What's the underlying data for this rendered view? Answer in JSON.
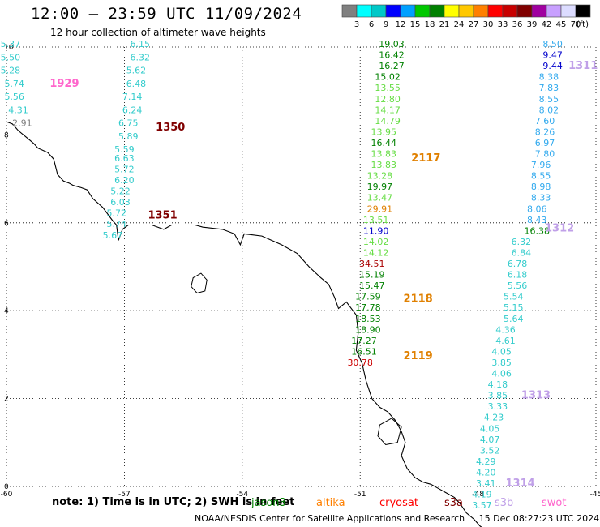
{
  "header": {
    "title": "12:00 – 23:59 UTC 11/09/2024",
    "subtitle": "12 hour collection of altimeter wave heights"
  },
  "colorbar": {
    "unit": "(ft)",
    "labels": [
      "3",
      "6",
      "9",
      "12",
      "15",
      "18",
      "21",
      "24",
      "27",
      "30",
      "33",
      "36",
      "39",
      "42",
      "45",
      "70"
    ],
    "colors": [
      "#808080",
      "#00ffff",
      "#00c8c8",
      "#0000ff",
      "#00a0ff",
      "#00c800",
      "#008000",
      "#ffff00",
      "#ffc800",
      "#ff8000",
      "#ff0000",
      "#c80000",
      "#800000",
      "#a000a0",
      "#c8a0ff",
      "#dcdcff",
      "#000000"
    ]
  },
  "map": {
    "x_ticks": [
      "-60",
      "-57",
      "-54",
      "-51",
      "-48",
      "-45"
    ],
    "y_ticks": [
      "0",
      "2",
      "4",
      "6",
      "8",
      "10"
    ],
    "lon_range": [
      -60,
      -45
    ],
    "lat_range": [
      0,
      10
    ]
  },
  "tracks": [
    {
      "name": "1929",
      "label_color": "#ff66cc",
      "label_pos": [
        -58.9,
        9.1
      ],
      "points": [
        {
          "lon": -59.9,
          "lat": 10.0,
          "v": "5.37",
          "c": "#33cccc"
        },
        {
          "lon": -59.9,
          "lat": 9.7,
          "v": "5.50",
          "c": "#33cccc"
        },
        {
          "lon": -59.9,
          "lat": 9.4,
          "v": "5.28",
          "c": "#33cccc"
        },
        {
          "lon": -59.8,
          "lat": 9.1,
          "v": "5.74",
          "c": "#33cccc"
        },
        {
          "lon": -59.8,
          "lat": 8.8,
          "v": "5.56",
          "c": "#33cccc"
        },
        {
          "lon": -59.7,
          "lat": 8.5,
          "v": "4.31",
          "c": "#33cccc"
        },
        {
          "lon": -59.6,
          "lat": 8.2,
          "v": "2.91",
          "c": "#808080"
        }
      ]
    },
    {
      "name": "1350",
      "label_color": "#800000",
      "label_pos": [
        -56.2,
        8.1
      ],
      "points": [
        {
          "lon": -56.6,
          "lat": 10.0,
          "v": "6.15",
          "c": "#33cccc"
        },
        {
          "lon": -56.6,
          "lat": 9.7,
          "v": "6.32",
          "c": "#33cccc"
        },
        {
          "lon": -56.7,
          "lat": 9.4,
          "v": "5.62",
          "c": "#33cccc"
        },
        {
          "lon": -56.7,
          "lat": 9.1,
          "v": "6.48",
          "c": "#33cccc"
        },
        {
          "lon": -56.8,
          "lat": 8.8,
          "v": "7.14",
          "c": "#33cccc"
        },
        {
          "lon": -56.8,
          "lat": 8.5,
          "v": "6.24",
          "c": "#33cccc"
        },
        {
          "lon": -56.9,
          "lat": 8.2,
          "v": "6.75",
          "c": "#33cccc"
        },
        {
          "lon": -56.9,
          "lat": 7.9,
          "v": "5.89",
          "c": "#33cccc"
        },
        {
          "lon": -57.0,
          "lat": 7.6,
          "v": "5.59",
          "c": "#33cccc"
        },
        {
          "lon": -57.0,
          "lat": 7.4,
          "v": "6.63",
          "c": "#33cccc"
        }
      ]
    },
    {
      "name": "1351",
      "label_color": "#800000",
      "label_pos": [
        -56.4,
        6.1
      ],
      "points": [
        {
          "lon": -57.0,
          "lat": 7.15,
          "v": "5.72",
          "c": "#33cccc"
        },
        {
          "lon": -57.0,
          "lat": 6.9,
          "v": "6.20",
          "c": "#33cccc"
        },
        {
          "lon": -57.1,
          "lat": 6.65,
          "v": "5.22",
          "c": "#33cccc"
        },
        {
          "lon": -57.1,
          "lat": 6.4,
          "v": "6.03",
          "c": "#33cccc"
        },
        {
          "lon": -57.2,
          "lat": 6.15,
          "v": "5.72",
          "c": "#33cccc"
        },
        {
          "lon": -57.2,
          "lat": 5.9,
          "v": "5.74",
          "c": "#33cccc"
        },
        {
          "lon": -57.3,
          "lat": 5.65,
          "v": "5.67",
          "c": "#33cccc"
        }
      ]
    },
    {
      "name": "2117",
      "label_color": "#e08000",
      "label_pos": [
        -49.7,
        7.4
      ],
      "points": [
        {
          "lon": -50.2,
          "lat": 10.0,
          "v": "19.03",
          "c": "#008000"
        },
        {
          "lon": -50.2,
          "lat": 9.75,
          "v": "16.42",
          "c": "#008000"
        },
        {
          "lon": -50.2,
          "lat": 9.5,
          "v": "16.27",
          "c": "#008000"
        },
        {
          "lon": -50.3,
          "lat": 9.25,
          "v": "15.02",
          "c": "#008000"
        },
        {
          "lon": -50.3,
          "lat": 9.0,
          "v": "13.55",
          "c": "#66dd44"
        },
        {
          "lon": -50.3,
          "lat": 8.75,
          "v": "12.80",
          "c": "#66dd44"
        },
        {
          "lon": -50.3,
          "lat": 8.5,
          "v": "14.17",
          "c": "#66dd44"
        },
        {
          "lon": -50.3,
          "lat": 8.25,
          "v": "14.79",
          "c": "#66dd44"
        },
        {
          "lon": -50.4,
          "lat": 8.0,
          "v": "13.95",
          "c": "#66dd44"
        },
        {
          "lon": -50.4,
          "lat": 7.75,
          "v": "16.44",
          "c": "#008000"
        },
        {
          "lon": -50.4,
          "lat": 7.5,
          "v": "13.83",
          "c": "#66dd44"
        },
        {
          "lon": -50.4,
          "lat": 7.25,
          "v": "13.83",
          "c": "#66dd44"
        },
        {
          "lon": -50.5,
          "lat": 7.0,
          "v": "13.28",
          "c": "#66dd44"
        },
        {
          "lon": -50.5,
          "lat": 6.75,
          "v": "19.97",
          "c": "#008000"
        },
        {
          "lon": -50.5,
          "lat": 6.5,
          "v": "13.47",
          "c": "#66dd44"
        },
        {
          "lon": -50.5,
          "lat": 6.25,
          "v": "29.91",
          "c": "#e08000"
        },
        {
          "lon": -50.6,
          "lat": 6.0,
          "v": "13.51",
          "c": "#66dd44"
        },
        {
          "lon": -50.6,
          "lat": 5.75,
          "v": "11.90",
          "c": "#0000cc"
        },
        {
          "lon": -50.6,
          "lat": 5.5,
          "v": "14.02",
          "c": "#66dd44"
        },
        {
          "lon": -50.6,
          "lat": 5.25,
          "v": "14.12",
          "c": "#66dd44"
        }
      ]
    },
    {
      "name": "2118",
      "label_color": "#e08000",
      "label_pos": [
        -49.9,
        4.2
      ],
      "points": [
        {
          "lon": -50.7,
          "lat": 5.0,
          "v": "34.51",
          "c": "#aa0000"
        },
        {
          "lon": -50.7,
          "lat": 4.75,
          "v": "15.19",
          "c": "#008000"
        },
        {
          "lon": -50.7,
          "lat": 4.5,
          "v": "15.47",
          "c": "#008000"
        },
        {
          "lon": -50.8,
          "lat": 4.25,
          "v": "17.59",
          "c": "#008000"
        },
        {
          "lon": -50.8,
          "lat": 4.0,
          "v": "17.78",
          "c": "#008000"
        }
      ]
    },
    {
      "name": "2119",
      "label_color": "#e08000",
      "label_pos": [
        -49.9,
        2.9
      ],
      "points": [
        {
          "lon": -50.8,
          "lat": 3.75,
          "v": "18.53",
          "c": "#008000"
        },
        {
          "lon": -50.8,
          "lat": 3.5,
          "v": "18.90",
          "c": "#008000"
        },
        {
          "lon": -50.9,
          "lat": 3.25,
          "v": "17.27",
          "c": "#008000"
        },
        {
          "lon": -50.9,
          "lat": 3.0,
          "v": "16.51",
          "c": "#008000"
        },
        {
          "lon": -51.0,
          "lat": 2.75,
          "v": "30.78",
          "c": "#cc0000"
        }
      ]
    },
    {
      "name": "1311",
      "label_color": "#c0a0e8",
      "label_pos": [
        -45.7,
        9.5
      ],
      "points": [
        {
          "lon": -46.1,
          "lat": 10.0,
          "v": "8.50",
          "c": "#33aaee"
        },
        {
          "lon": -46.1,
          "lat": 9.75,
          "v": "9.47",
          "c": "#0000cc"
        },
        {
          "lon": -46.1,
          "lat": 9.5,
          "v": "9.44",
          "c": "#0000cc"
        },
        {
          "lon": -46.2,
          "lat": 9.25,
          "v": "8.38",
          "c": "#33aaee"
        },
        {
          "lon": -46.2,
          "lat": 9.0,
          "v": "7.83",
          "c": "#33aaee"
        },
        {
          "lon": -46.2,
          "lat": 8.75,
          "v": "8.55",
          "c": "#33aaee"
        },
        {
          "lon": -46.2,
          "lat": 8.5,
          "v": "8.02",
          "c": "#33aaee"
        },
        {
          "lon": -46.3,
          "lat": 8.25,
          "v": "7.60",
          "c": "#33aaee"
        },
        {
          "lon": -46.3,
          "lat": 8.0,
          "v": "8.26",
          "c": "#33aaee"
        },
        {
          "lon": -46.3,
          "lat": 7.75,
          "v": "6.97",
          "c": "#33aaee"
        },
        {
          "lon": -46.3,
          "lat": 7.5,
          "v": "7.80",
          "c": "#33aaee"
        },
        {
          "lon": -46.4,
          "lat": 7.25,
          "v": "7.96",
          "c": "#33aaee"
        },
        {
          "lon": -46.4,
          "lat": 7.0,
          "v": "8.55",
          "c": "#33aaee"
        },
        {
          "lon": -46.4,
          "lat": 6.75,
          "v": "8.98",
          "c": "#33aaee"
        },
        {
          "lon": -46.4,
          "lat": 6.5,
          "v": "8.33",
          "c": "#33aaee"
        },
        {
          "lon": -46.5,
          "lat": 6.25,
          "v": "8.06",
          "c": "#33aaee"
        },
        {
          "lon": -46.5,
          "lat": 6.0,
          "v": "8.43",
          "c": "#33aaee"
        },
        {
          "lon": -46.5,
          "lat": 5.75,
          "v": "16.38",
          "c": "#008000"
        }
      ]
    },
    {
      "name": "1312",
      "label_color": "#c0a0e8",
      "label_pos": [
        -46.3,
        5.8
      ],
      "points": [
        {
          "lon": -46.9,
          "lat": 5.5,
          "v": "6.32",
          "c": "#33cccc"
        },
        {
          "lon": -46.9,
          "lat": 5.25,
          "v": "6.84",
          "c": "#33cccc"
        },
        {
          "lon": -47.0,
          "lat": 5.0,
          "v": "6.78",
          "c": "#33cccc"
        },
        {
          "lon": -47.0,
          "lat": 4.75,
          "v": "6.18",
          "c": "#33cccc"
        },
        {
          "lon": -47.0,
          "lat": 4.5,
          "v": "5.56",
          "c": "#33cccc"
        },
        {
          "lon": -47.1,
          "lat": 4.25,
          "v": "5.54",
          "c": "#33cccc"
        },
        {
          "lon": -47.1,
          "lat": 4.0,
          "v": "5.15",
          "c": "#33cccc"
        },
        {
          "lon": -47.1,
          "lat": 3.75,
          "v": "5.64",
          "c": "#33cccc"
        }
      ]
    },
    {
      "name": "1313",
      "label_color": "#c0a0e8",
      "label_pos": [
        -46.9,
        2.0
      ],
      "points": [
        {
          "lon": -47.3,
          "lat": 3.5,
          "v": "4.36",
          "c": "#33cccc"
        },
        {
          "lon": -47.3,
          "lat": 3.25,
          "v": "4.61",
          "c": "#33cccc"
        },
        {
          "lon": -47.4,
          "lat": 3.0,
          "v": "4.05",
          "c": "#33cccc"
        },
        {
          "lon": -47.4,
          "lat": 2.75,
          "v": "3.85",
          "c": "#33cccc"
        },
        {
          "lon": -47.4,
          "lat": 2.5,
          "v": "4.06",
          "c": "#33cccc"
        },
        {
          "lon": -47.5,
          "lat": 2.25,
          "v": "4.18",
          "c": "#33cccc"
        },
        {
          "lon": -47.5,
          "lat": 2.0,
          "v": "3.85",
          "c": "#33cccc"
        },
        {
          "lon": -47.5,
          "lat": 1.75,
          "v": "3.33",
          "c": "#33cccc"
        },
        {
          "lon": -47.6,
          "lat": 1.5,
          "v": "4.23",
          "c": "#33cccc"
        }
      ]
    },
    {
      "name": "1314",
      "label_color": "#c0a0e8",
      "label_pos": [
        -47.3,
        0.0
      ],
      "points": [
        {
          "lon": -47.7,
          "lat": 1.25,
          "v": "4.05",
          "c": "#33cccc"
        },
        {
          "lon": -47.7,
          "lat": 1.0,
          "v": "4.07",
          "c": "#33cccc"
        },
        {
          "lon": -47.7,
          "lat": 0.75,
          "v": "3.52",
          "c": "#33cccc"
        },
        {
          "lon": -47.8,
          "lat": 0.5,
          "v": "4.29",
          "c": "#33cccc"
        },
        {
          "lon": -47.8,
          "lat": 0.25,
          "v": "4.20",
          "c": "#33cccc"
        },
        {
          "lon": -47.8,
          "lat": 0.0,
          "v": "3.41",
          "c": "#33cccc"
        },
        {
          "lon": -47.9,
          "lat": -0.25,
          "v": "4.19",
          "c": "#33cccc"
        },
        {
          "lon": -47.9,
          "lat": -0.5,
          "v": "3.57",
          "c": "#33cccc"
        }
      ]
    }
  ],
  "notes": {
    "text": "note:  1) Time is in UTC; 2) SWH is in feet",
    "satellites": [
      {
        "name": "jason3",
        "color": "#008000"
      },
      {
        "name": "altika",
        "color": "#ff8000"
      },
      {
        "name": "cryosat",
        "color": "#ff0000"
      },
      {
        "name": "s3a",
        "color": "#800000"
      },
      {
        "name": "s3b",
        "color": "#c0a0e8"
      },
      {
        "name": "swot",
        "color": "#ff66cc"
      }
    ]
  },
  "footer": {
    "text": "NOAA/NESDIS Center for Satellite Applications and Research     15 Dec 08:27:23 UTC 2024"
  }
}
